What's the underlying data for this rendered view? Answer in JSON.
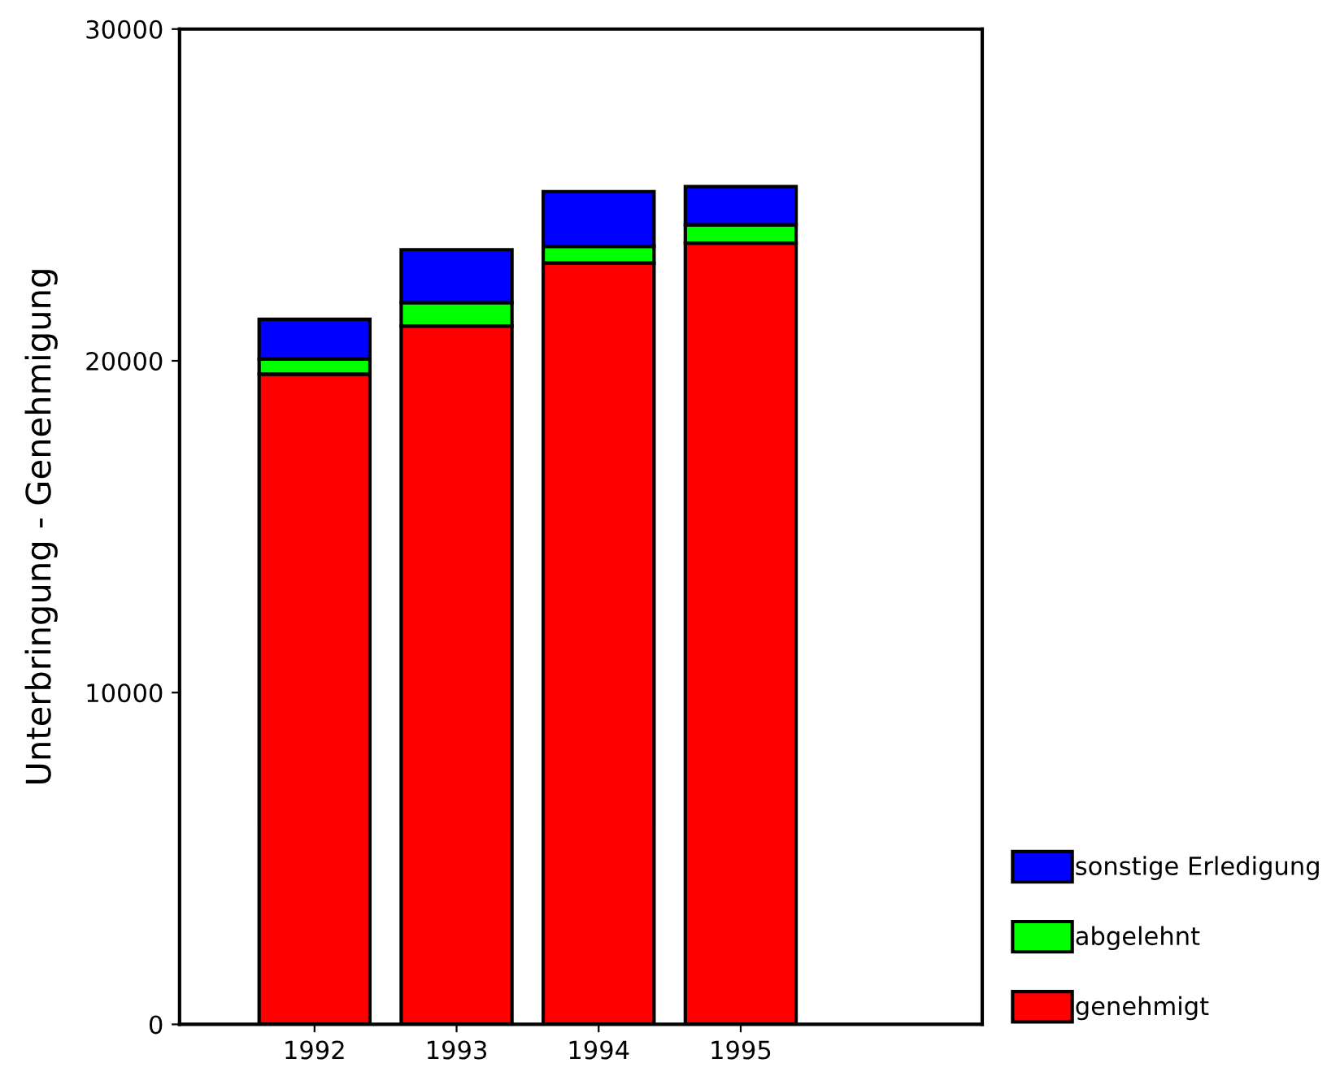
{
  "chart_data": {
    "type": "bar",
    "stacked": true,
    "ylabel": "Unterbringung - Genehmigung",
    "categories": [
      "1992",
      "1993",
      "1994",
      "1995"
    ],
    "series": [
      {
        "name": "genehmigt",
        "color": "#ff0000",
        "values": [
          19600,
          21050,
          22950,
          23550
        ]
      },
      {
        "name": "abgelehnt",
        "color": "#00ff00",
        "values": [
          450,
          700,
          500,
          550
        ]
      },
      {
        "name": "sonstige Erledigung",
        "color": "#0000ff",
        "values": [
          1200,
          1600,
          1650,
          1150
        ]
      }
    ],
    "ylim": [
      0,
      30000
    ],
    "yticks": [
      0,
      10000,
      20000,
      30000
    ],
    "grid": false,
    "legend": "right"
  }
}
